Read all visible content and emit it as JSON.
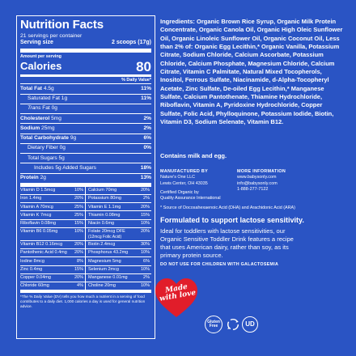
{
  "nutrition": {
    "title": "Nutrition Facts",
    "servings": "21 servings per container",
    "serving_label": "Serving size",
    "serving_value": "2 scoops (17g)",
    "amount_label": "Amount per serving",
    "calories_label": "Calories",
    "calories_value": "80",
    "dv_header": "% Daily Value*",
    "rows": [
      {
        "name": "Total Fat",
        "amount": "4.5g",
        "dv": "11%",
        "bold": true,
        "style": ""
      },
      {
        "name": "Saturated Fat",
        "amount": "1g",
        "dv": "11%",
        "bold": false,
        "style": "indent"
      },
      {
        "name": "Trans",
        "name_suffix": " Fat",
        "amount": "0g",
        "dv": "",
        "bold": false,
        "style": "indent trans"
      },
      {
        "name": "Cholesterol",
        "amount": "5mg",
        "dv": "2%",
        "bold": true,
        "style": ""
      },
      {
        "name": "Sodium",
        "amount": "25mg",
        "dv": "2%",
        "bold": true,
        "style": ""
      },
      {
        "name": "Total Carbohydrate",
        "amount": "9g",
        "dv": "6%",
        "bold": true,
        "style": ""
      },
      {
        "name": "Dietary Fiber",
        "amount": "0g",
        "dv": "0%",
        "bold": false,
        "style": "indent"
      },
      {
        "name": "Total Sugars",
        "amount": "5g",
        "dv": "",
        "bold": false,
        "style": "indent"
      },
      {
        "name": "Includes 5g Added Sugars",
        "amount": "",
        "dv": "18%",
        "bold": false,
        "style": "indent2"
      },
      {
        "name": "Protein",
        "amount": "2g",
        "dv": "13%",
        "bold": true,
        "style": "thick"
      }
    ],
    "vitamins": [
      {
        "l_name": "Vitamin D 1.5mcg",
        "l_dv": "10%",
        "r_name": "Calcium 70mg",
        "r_dv": "20%"
      },
      {
        "l_name": "Iron 1.4mg",
        "l_dv": "20%",
        "r_name": "Potassium 80mg",
        "r_dv": "2%"
      },
      {
        "l_name": "Vitamin A 70mcg",
        "l_dv": "25%",
        "r_name": "Vitamin E 1.1mg",
        "r_dv": "20%"
      },
      {
        "l_name": "Vitamin K 7mcg",
        "l_dv": "25%",
        "r_name": "Thiamin 0.08mg",
        "r_dv": "15%"
      },
      {
        "l_name": "Riboflavin 0.08mg",
        "l_dv": "15%",
        "r_name": "Niacin 0.6mg",
        "r_dv": "10%"
      },
      {
        "l_name": "Vitamin B6 0.05mg",
        "l_dv": "10%",
        "r_name": "Folate 20mcg DFE",
        "r_sub": "(12mcg Folic Acid)",
        "r_dv": "20%"
      },
      {
        "l_name": "Vitamin B12 0.16mcg",
        "l_dv": "20%",
        "r_name": "Biotin 2.4mcg",
        "r_dv": "30%"
      },
      {
        "l_name": "Pantothenic Acid 0.4mg",
        "l_dv": "20%",
        "r_name": "Phosphorus 43.2mg",
        "r_dv": "10%"
      },
      {
        "l_name": "Iodine 8mcg",
        "l_dv": "8%",
        "r_name": "Magnesium 5mg",
        "r_dv": "6%"
      },
      {
        "l_name": "Zinc 0.4mg",
        "l_dv": "15%",
        "r_name": "Selenium 2mcg",
        "r_dv": "10%"
      },
      {
        "l_name": "Copper 0.04mg",
        "l_dv": "20%",
        "r_name": "Manganese 0.01mg",
        "r_dv": "2%"
      },
      {
        "l_name": "Chloride 60mg",
        "l_dv": "4%",
        "r_name": "Choline 20mg",
        "r_dv": "10%"
      }
    ],
    "footnote": "*The % Daily Value (DV) tells you how much a nutrient in a serving of food contributes to a daily diet. 1,000 calories a day is used for general nutrition advice."
  },
  "ingredients": {
    "label": "Ingredients:",
    "text": " Organic Brown Rice Syrup, Organic Milk Protein Concentrate, Organic Canola Oil, Organic High Oleic Sunflower Oil, Organic Linoleic Sunflower Oil, Organic Coconut Oil, Less than 2% of: Organic Egg Lecithin,* Organic Vanilla, Potassium Citrate, Sodium Chloride, Calcium Ascorbate, Potassium Chloride, Calcium Phosphate, Magnesium Chloride, Calcium Citrate, Vitamin C Palmitate, Natural Mixed Tocopherols, Inositol, Ferrous Sulfate, Niacinamide, d-Alpha-Tocopheryl Acetate, Zinc Sulfate, De-oiled Egg Lecithin,* Manganese Sulfate, Calcium Pantothenate, Thiamine Hydrochloride, Riboflavin, Vitamin A, Pyridoxine Hydrochloride, Copper Sulfate, Folic Acid, Phylloquinone, Potassium Iodide, Biotin, Vitamin D3, Sodium Selenate, Vitamin B12.",
    "contains": "Contains milk and egg."
  },
  "manufacturer": {
    "heading": "MANUFACTURED BY",
    "lines": [
      "Nature's One LLC",
      "Lewis Center, OH 43035"
    ],
    "cert_lines": [
      "Certified Organic by",
      "Quality Assurance International"
    ]
  },
  "more_info": {
    "heading": "MORE INFORMATION",
    "lines": [
      "www.babysonly.com",
      "info@babysonly.com",
      "1-888-277-7122"
    ]
  },
  "source_note": "* Source of Docosahexaenoic Acid (DHA) and Arachidonic Acid (ARA)",
  "lactose": {
    "title": "Formulated to support lactose sensitivity.",
    "body": "Ideal for toddlers with lactose sensitivities, our Organic Sensitive Toddler Drink features a recipe that uses American dairy, rather than soy, as its primary protein source.",
    "warning": "DO NOT USE FOR CHILDREN WITH GALACTOSEMIA"
  },
  "badges": {
    "heart_line1": "Made",
    "heart_line2": "with love",
    "heart_color": "#e11d2a",
    "gluten_line1": "Gluten",
    "gluten_line2": "Free",
    "ud_mark": "UD",
    "recycle_icon": "recycle-icon"
  },
  "colors": {
    "background": "#2a54c4",
    "text": "#ffffff"
  }
}
